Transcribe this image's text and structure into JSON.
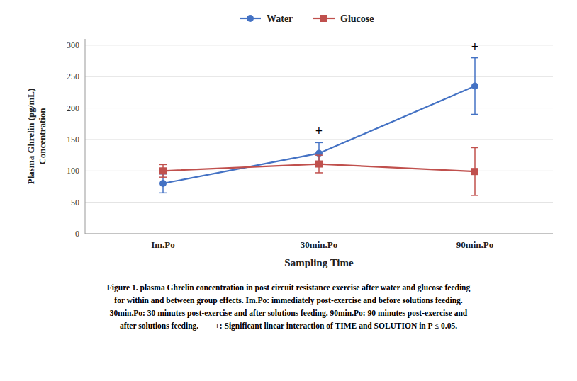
{
  "chart_data": {
    "type": "line",
    "categories": [
      "Im.Po",
      "30min.Po",
      "90min.Po"
    ],
    "series": [
      {
        "name": "Water",
        "color": "#4472C4",
        "marker": "circle",
        "values": [
          80,
          128,
          235
        ],
        "errors": [
          15,
          17,
          45
        ]
      },
      {
        "name": "Glucose",
        "color": "#C0504D",
        "marker": "square",
        "values": [
          100,
          111,
          99
        ],
        "errors": [
          10,
          14,
          38
        ]
      }
    ],
    "ylim": [
      0,
      310
    ],
    "yticks": [
      0,
      50,
      100,
      150,
      200,
      250,
      300
    ],
    "y_label": [
      "Plasma Ghrelin (pg/mL)",
      "Concentration"
    ],
    "x_label": "Sampling Time",
    "annotations": [
      {
        "text": "+",
        "x": "30min.Po",
        "y": 153
      },
      {
        "text": "+",
        "x": "90min.Po",
        "y": 288
      }
    ],
    "caption": [
      "Figure 1. plasma Ghrelin concentration in post circuit resistance exercise after water and glucose feeding",
      "for within and between group effects. Im.Po: immediately post-exercise and before solutions feeding.",
      "30min.Po: 30 minutes post-exercise and after solutions feeding. 90min.Po: 90 minutes post-exercise and",
      "after solutions feeding.        +: Significant linear interaction of TIME and SOLUTION in P ≤ 0.05."
    ],
    "grid": true,
    "legend": "top"
  }
}
